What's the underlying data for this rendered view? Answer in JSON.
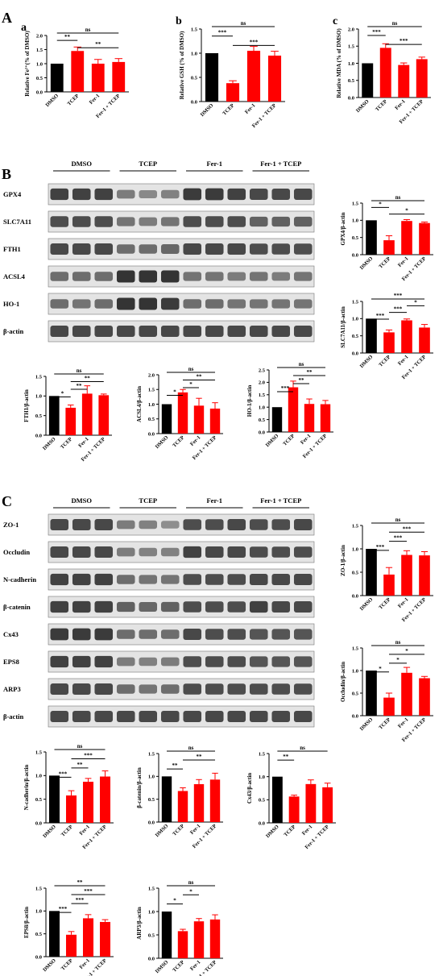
{
  "panels": {
    "A": "A",
    "B": "B",
    "C": "C"
  },
  "colors": {
    "control": "#000000",
    "treated": "#ff0000",
    "blot_bg": "#e4e4e4",
    "band": "#2a2a2a"
  },
  "blots": [
    {
      "panel": "B",
      "groups": [
        "DMSO",
        "TCEP",
        "Fer-1",
        "Fer-1 + TCEP"
      ],
      "rows": [
        {
          "label": "GPX4",
          "lanes": [
            0.9,
            0.9,
            0.9,
            0.45,
            0.35,
            0.4,
            0.95,
            0.95,
            0.9,
            0.85,
            0.85,
            0.85
          ]
        },
        {
          "label": "SLC7A11",
          "lanes": [
            0.8,
            0.8,
            0.8,
            0.5,
            0.45,
            0.5,
            0.8,
            0.8,
            0.8,
            0.65,
            0.65,
            0.65
          ]
        },
        {
          "label": "FTH1",
          "lanes": [
            0.85,
            0.85,
            0.85,
            0.55,
            0.55,
            0.6,
            0.85,
            0.85,
            0.85,
            0.8,
            0.8,
            0.8
          ]
        },
        {
          "label": "ACSL4",
          "lanes": [
            0.55,
            0.55,
            0.55,
            1.0,
            1.0,
            1.0,
            0.5,
            0.5,
            0.45,
            0.5,
            0.45,
            0.5
          ]
        },
        {
          "label": "HO-1",
          "lanes": [
            0.55,
            0.5,
            0.55,
            1.0,
            1.0,
            0.95,
            0.55,
            0.55,
            0.5,
            0.5,
            0.5,
            0.5
          ]
        },
        {
          "label": "β-actin",
          "lanes": [
            0.85,
            0.85,
            0.85,
            0.85,
            0.85,
            0.85,
            0.85,
            0.85,
            0.85,
            0.85,
            0.85,
            0.85
          ]
        }
      ]
    },
    {
      "panel": "C",
      "groups": [
        "DMSO",
        "TCEP",
        "Fer-1",
        "Fer-1 + TCEP"
      ],
      "rows": [
        {
          "label": "ZO-1",
          "lanes": [
            0.85,
            0.85,
            0.85,
            0.45,
            0.4,
            0.3,
            0.8,
            0.8,
            0.85,
            0.8,
            0.8,
            0.85
          ]
        },
        {
          "label": "Occludin",
          "lanes": [
            0.85,
            0.85,
            0.85,
            0.45,
            0.4,
            0.4,
            0.9,
            0.85,
            0.85,
            0.8,
            0.8,
            0.8
          ]
        },
        {
          "label": "N-cadherin",
          "lanes": [
            0.9,
            0.9,
            0.9,
            0.55,
            0.5,
            0.5,
            0.8,
            0.8,
            0.8,
            0.85,
            0.85,
            0.85
          ]
        },
        {
          "label": "β-catenin",
          "lanes": [
            0.9,
            0.9,
            0.9,
            0.65,
            0.6,
            0.65,
            0.8,
            0.8,
            0.8,
            0.9,
            0.85,
            0.85
          ]
        },
        {
          "label": "Cx43",
          "lanes": [
            0.95,
            0.95,
            0.95,
            0.55,
            0.55,
            0.55,
            0.85,
            0.8,
            0.8,
            0.75,
            0.75,
            0.75
          ]
        },
        {
          "label": "EPS8",
          "lanes": [
            0.9,
            0.9,
            0.9,
            0.45,
            0.4,
            0.45,
            0.8,
            0.8,
            0.8,
            0.75,
            0.75,
            0.75
          ]
        },
        {
          "label": "ARP3",
          "lanes": [
            0.85,
            0.85,
            0.85,
            0.55,
            0.5,
            0.55,
            0.8,
            0.8,
            0.8,
            0.8,
            0.8,
            0.8
          ]
        },
        {
          "label": "β-actin",
          "lanes": [
            0.85,
            0.85,
            0.85,
            0.85,
            0.85,
            0.85,
            0.85,
            0.85,
            0.85,
            0.85,
            0.85,
            0.85
          ]
        }
      ]
    }
  ],
  "chart_data": [
    {
      "type": "bar",
      "panel": "A",
      "sub": "a",
      "categories": [
        "DMSO",
        "TCEP",
        "Fer-1",
        "Fer-1 + TCEP"
      ],
      "values": [
        1.0,
        1.45,
        1.0,
        1.06
      ],
      "errors": [
        0,
        0.14,
        0.15,
        0.12
      ],
      "ylabel": "Relative Fe²⁺(% of DMSO)",
      "ylim": [
        0,
        2.0
      ],
      "yticks": [
        "0.0",
        "0.5",
        "1.0",
        "1.5",
        "2.0"
      ],
      "sig": [
        {
          "a": 0,
          "b": 3,
          "label": "ns"
        },
        {
          "a": 0,
          "b": 1,
          "label": "**"
        },
        {
          "a": 1,
          "b": 3,
          "label": "**"
        }
      ]
    },
    {
      "type": "bar",
      "panel": "A",
      "sub": "b",
      "categories": [
        "DMSO",
        "TCEP",
        "Fer-1",
        "Fer-1 + TCEP"
      ],
      "values": [
        1.0,
        0.38,
        1.05,
        0.95
      ],
      "errors": [
        0,
        0.05,
        0.09,
        0.09
      ],
      "ylabel": "Relative GSH (% of DMSO)",
      "ylim": [
        0,
        1.5
      ],
      "yticks": [
        "0.0",
        "0.5",
        "1.0",
        "1.5"
      ],
      "sig": [
        {
          "a": 0,
          "b": 3,
          "label": "ns"
        },
        {
          "a": 0,
          "b": 1,
          "label": "***"
        },
        {
          "a": 1,
          "b": 3,
          "label": "***"
        }
      ]
    },
    {
      "type": "bar",
      "panel": "A",
      "sub": "c",
      "categories": [
        "DMSO",
        "TCEP",
        "Fer-1",
        "Fer-1 + TCEP"
      ],
      "values": [
        1.0,
        1.45,
        0.95,
        1.12
      ],
      "errors": [
        0,
        0.12,
        0.06,
        0.06
      ],
      "ylabel": "Relative MDA (% of DMSO)",
      "ylim": [
        0,
        2.0
      ],
      "yticks": [
        "0.0",
        "0.5",
        "1.0",
        "1.5",
        "2.0"
      ],
      "sig": [
        {
          "a": 0,
          "b": 3,
          "label": "ns"
        },
        {
          "a": 0,
          "b": 1,
          "label": "***"
        },
        {
          "a": 1,
          "b": 3,
          "label": "***"
        }
      ]
    },
    {
      "type": "bar",
      "panel": "B",
      "categories": [
        "DMSO",
        "TCEP",
        "Fer-1",
        "Fer-1 + TCEP"
      ],
      "values": [
        1.0,
        0.42,
        0.98,
        0.92
      ],
      "errors": [
        0,
        0.13,
        0.04,
        0.03
      ],
      "ylabel": "GPX4/β-actin",
      "ylim": [
        0,
        1.5
      ],
      "yticks": [
        "0.0",
        "0.5",
        "1.0",
        "1.5"
      ],
      "sig": [
        {
          "a": 0,
          "b": 3,
          "label": "ns"
        },
        {
          "a": 0,
          "b": 1,
          "label": "*"
        },
        {
          "a": 1,
          "b": 3,
          "label": "*"
        }
      ]
    },
    {
      "type": "bar",
      "panel": "B",
      "categories": [
        "DMSO",
        "TCEP",
        "Fer-1",
        "Fer-1 + TCEP"
      ],
      "values": [
        1.0,
        0.6,
        0.95,
        0.74
      ],
      "errors": [
        0,
        0.07,
        0.04,
        0.09
      ],
      "ylabel": "SLC7A11/β-actin",
      "ylim": [
        0,
        1.5
      ],
      "yticks": [
        "0.0",
        "0.5",
        "1.0",
        "1.5"
      ],
      "sig": [
        {
          "a": 0,
          "b": 3,
          "label": "***"
        },
        {
          "a": 2,
          "b": 3,
          "label": "*"
        },
        {
          "a": 1,
          "b": 2,
          "label": "***"
        },
        {
          "a": 0,
          "b": 1,
          "label": "***"
        }
      ]
    },
    {
      "type": "bar",
      "panel": "B",
      "categories": [
        "DMSO",
        "TCEP",
        "Fer-1",
        "Fer-1 + TCEP"
      ],
      "values": [
        1.0,
        0.7,
        1.06,
        1.02
      ],
      "errors": [
        0,
        0.07,
        0.2,
        0.03
      ],
      "ylabel": "FTH1/β-actin",
      "ylim": [
        0,
        1.5
      ],
      "yticks": [
        "0.0",
        "0.5",
        "1.0",
        "1.5"
      ],
      "sig": [
        {
          "a": 0,
          "b": 3,
          "label": "ns"
        },
        {
          "a": 1,
          "b": 3,
          "label": "**"
        },
        {
          "a": 1,
          "b": 2,
          "label": "**"
        },
        {
          "a": 0,
          "b": 1,
          "label": "*"
        }
      ]
    },
    {
      "type": "bar",
      "panel": "B",
      "categories": [
        "DMSO",
        "TCEP",
        "Fer-1",
        "Fer-1 + TCEP"
      ],
      "values": [
        1.0,
        1.4,
        0.95,
        0.85
      ],
      "errors": [
        0,
        0.1,
        0.25,
        0.2
      ],
      "ylabel": "ACSL4/β-actin",
      "ylim": [
        0,
        2.0
      ],
      "yticks": [
        "0.0",
        "0.5",
        "1.0",
        "1.5",
        "2.0"
      ],
      "sig": [
        {
          "a": 0,
          "b": 3,
          "label": "ns"
        },
        {
          "a": 1,
          "b": 3,
          "label": "**"
        },
        {
          "a": 1,
          "b": 2,
          "label": "*"
        },
        {
          "a": 0,
          "b": 1,
          "label": "*"
        }
      ]
    },
    {
      "type": "bar",
      "panel": "B",
      "categories": [
        "DMSO",
        "TCEP",
        "Fer-1",
        "Fer-1 + TCEP"
      ],
      "values": [
        1.0,
        1.8,
        1.13,
        1.12
      ],
      "errors": [
        0,
        0.25,
        0.2,
        0.15
      ],
      "ylabel": "HO-1/β-actin",
      "ylim": [
        0,
        2.5
      ],
      "yticks": [
        "0.0",
        "0.5",
        "1.0",
        "1.5",
        "2.0",
        "2.5"
      ],
      "sig": [
        {
          "a": 0,
          "b": 3,
          "label": "ns"
        },
        {
          "a": 1,
          "b": 3,
          "label": "**"
        },
        {
          "a": 1,
          "b": 2,
          "label": "**"
        },
        {
          "a": 0,
          "b": 1,
          "label": "***"
        }
      ]
    },
    {
      "type": "bar",
      "panel": "C",
      "categories": [
        "DMSO",
        "TCEP",
        "Fer-1",
        "Fer-1 + TCEP"
      ],
      "values": [
        1.0,
        0.45,
        0.87,
        0.86
      ],
      "errors": [
        0,
        0.15,
        0.09,
        0.08
      ],
      "ylabel": "ZO-1/β-actin",
      "ylim": [
        0,
        1.5
      ],
      "yticks": [
        "0.0",
        "0.5",
        "1.0",
        "1.5"
      ],
      "sig": [
        {
          "a": 0,
          "b": 3,
          "label": "ns"
        },
        {
          "a": 1,
          "b": 3,
          "label": "***"
        },
        {
          "a": 1,
          "b": 2,
          "label": "***"
        },
        {
          "a": 0,
          "b": 1,
          "label": "***"
        }
      ]
    },
    {
      "type": "bar",
      "panel": "C",
      "categories": [
        "DMSO",
        "TCEP",
        "Fer-1",
        "Fer-1 + TCEP"
      ],
      "values": [
        1.0,
        0.4,
        0.95,
        0.83
      ],
      "errors": [
        0,
        0.1,
        0.12,
        0.04
      ],
      "ylabel": "Occludin/β-actin",
      "ylim": [
        0,
        1.5
      ],
      "yticks": [
        "0.0",
        "0.5",
        "1.0",
        "1.5"
      ],
      "sig": [
        {
          "a": 0,
          "b": 3,
          "label": "ns"
        },
        {
          "a": 1,
          "b": 3,
          "label": "*"
        },
        {
          "a": 1,
          "b": 2,
          "label": "*"
        },
        {
          "a": 0,
          "b": 1,
          "label": "*"
        }
      ]
    },
    {
      "type": "bar",
      "panel": "C",
      "categories": [
        "DMSO",
        "TCEP",
        "Fer-1",
        "Fer-1 + TCEP"
      ],
      "values": [
        1.0,
        0.58,
        0.87,
        0.98
      ],
      "errors": [
        0,
        0.1,
        0.07,
        0.12
      ],
      "ylabel": "N-cadherin/β-actin",
      "ylim": [
        0,
        1.5
      ],
      "yticks": [
        "0.0",
        "0.5",
        "1.0",
        "1.5"
      ],
      "sig": [
        {
          "a": 0,
          "b": 3,
          "label": "ns"
        },
        {
          "a": 1,
          "b": 3,
          "label": "***"
        },
        {
          "a": 1,
          "b": 2,
          "label": "**"
        },
        {
          "a": 0,
          "b": 1,
          "label": "***"
        }
      ]
    },
    {
      "type": "bar",
      "panel": "C",
      "categories": [
        "DMSO",
        "TCEP",
        "Fer-1",
        "Fer-1 + TCEP"
      ],
      "values": [
        1.0,
        0.68,
        0.83,
        0.93
      ],
      "errors": [
        0,
        0.07,
        0.1,
        0.14
      ],
      "ylabel": "β-catenin/β-actin",
      "ylim": [
        0,
        1.5
      ],
      "yticks": [
        "0.0",
        "0.5",
        "1.0",
        "1.5"
      ],
      "sig": [
        {
          "a": 0,
          "b": 3,
          "label": "ns"
        },
        {
          "a": 1,
          "b": 3,
          "label": "**"
        },
        {
          "a": 0,
          "b": 1,
          "label": "**"
        }
      ]
    },
    {
      "type": "bar",
      "panel": "C",
      "categories": [
        "DMSO",
        "TCEP",
        "Fer-1",
        "Fer-1 + TCEP"
      ],
      "values": [
        1.0,
        0.57,
        0.84,
        0.77
      ],
      "errors": [
        0,
        0.03,
        0.09,
        0.09
      ],
      "ylabel": "Cx43/β-actin",
      "ylim": [
        0,
        1.5
      ],
      "yticks": [
        "0.0",
        "0.5",
        "1.0",
        "1.5"
      ],
      "sig": [
        {
          "a": 0,
          "b": 3,
          "label": "ns"
        },
        {
          "a": 0,
          "b": 1,
          "label": "**"
        }
      ]
    },
    {
      "type": "bar",
      "panel": "C",
      "categories": [
        "DMSO",
        "TCEP",
        "Fer-1",
        "Fer-1 + TCEP"
      ],
      "values": [
        1.0,
        0.48,
        0.84,
        0.76
      ],
      "errors": [
        0,
        0.07,
        0.08,
        0.05
      ],
      "ylabel": "EPS8/β-actin",
      "ylim": [
        0,
        1.5
      ],
      "yticks": [
        "0.0",
        "0.5",
        "1.0",
        "1.5"
      ],
      "sig": [
        {
          "a": 0,
          "b": 3,
          "label": "**"
        },
        {
          "a": 1,
          "b": 3,
          "label": "***"
        },
        {
          "a": 1,
          "b": 2,
          "label": "***"
        },
        {
          "a": 0,
          "b": 1,
          "label": "***"
        }
      ]
    },
    {
      "type": "bar",
      "panel": "C",
      "categories": [
        "DMSO",
        "TCEP",
        "Fer-1",
        "Fer-1 + TCEP"
      ],
      "values": [
        1.0,
        0.58,
        0.79,
        0.83
      ],
      "errors": [
        0,
        0.04,
        0.06,
        0.1
      ],
      "ylabel": "ARP3/β-actin",
      "ylim": [
        0,
        1.5
      ],
      "yticks": [
        "0.0",
        "0.5",
        "1.0",
        "1.5"
      ],
      "sig": [
        {
          "a": 0,
          "b": 3,
          "label": "ns"
        },
        {
          "a": 1,
          "b": 2,
          "label": "*"
        },
        {
          "a": 0,
          "b": 1,
          "label": "*"
        }
      ]
    }
  ]
}
